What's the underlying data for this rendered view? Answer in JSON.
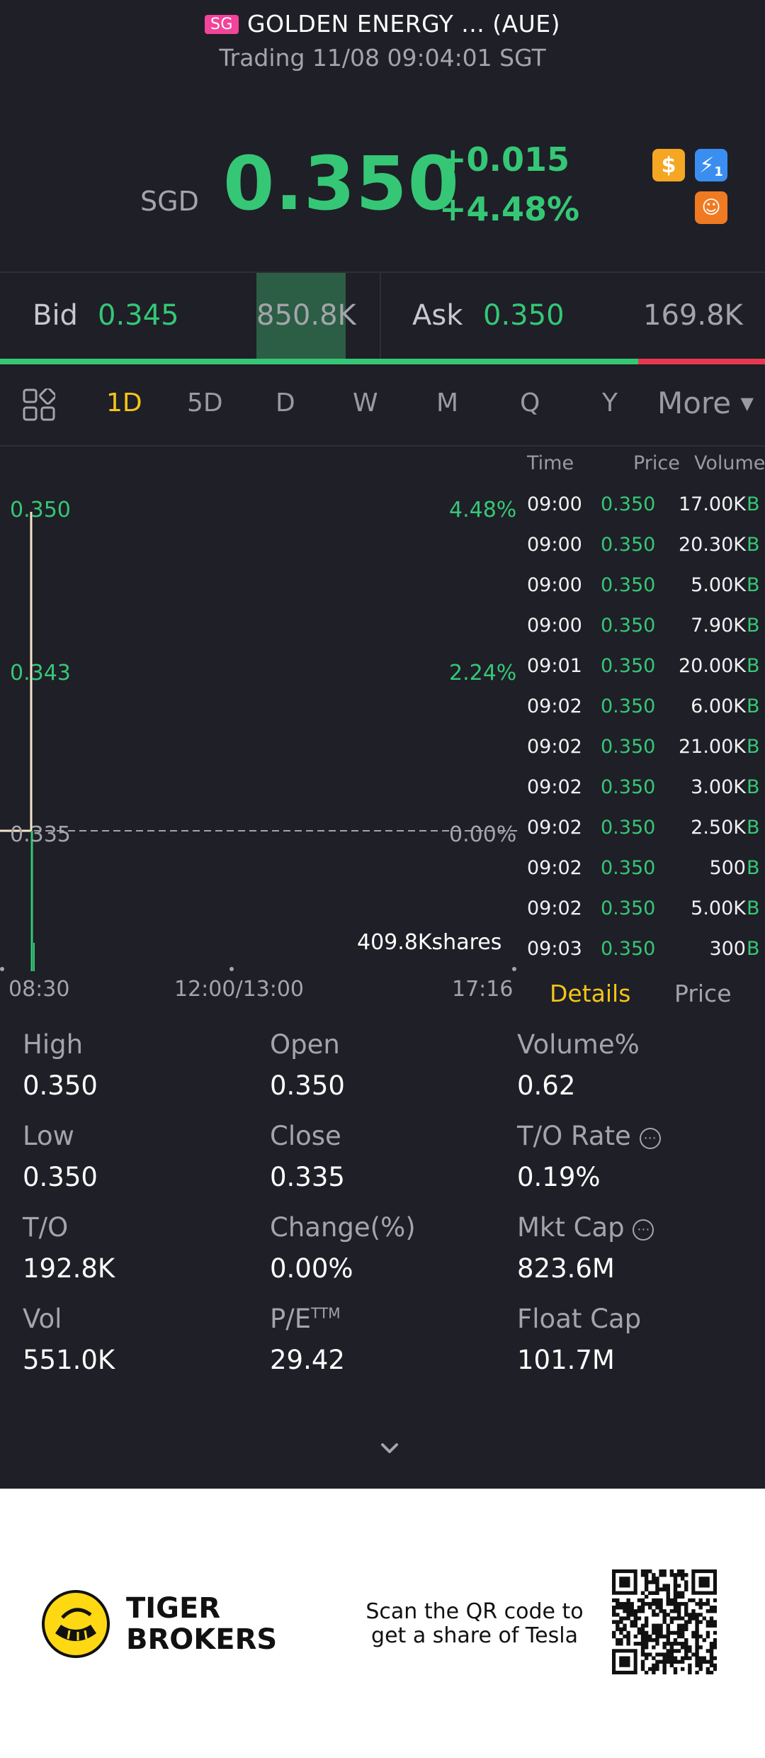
{
  "header": {
    "badge": "SG",
    "title": "GOLDEN ENERGY ... (AUE)",
    "subtitle": "Trading 11/08 09:04:01 SGT"
  },
  "quote": {
    "currency": "SGD",
    "price": "0.350",
    "change": "+0.015",
    "change_pct": "+4.48%",
    "icons": [
      "dollar-icon",
      "lightning-icon",
      "orange-badge-icon"
    ],
    "lightning_sub": "1"
  },
  "book": {
    "bid_label": "Bid",
    "bid_price": "0.345",
    "bid_volume": "850.8K",
    "ask_label": "Ask",
    "ask_price": "0.350",
    "ask_volume": "169.8K",
    "bid_ratio": 0.834
  },
  "tabs": {
    "items": [
      "1D",
      "5D",
      "D",
      "W",
      "M",
      "Q",
      "Y"
    ],
    "active": "1D",
    "more": "More"
  },
  "chart": {
    "price_labels": [
      "0.350",
      "0.343",
      "0.335"
    ],
    "pct_labels": [
      "4.48%",
      "2.24%",
      "0.00%"
    ],
    "volume_label": "409.8Kshares",
    "time_labels": [
      "08:30",
      "12:00/13:00",
      "17:16"
    ]
  },
  "trades": {
    "headers": [
      "Time",
      "Price",
      "Volume"
    ],
    "rows": [
      {
        "time": "09:00",
        "price": "0.350",
        "volume": "17.00K",
        "dir": "B"
      },
      {
        "time": "09:00",
        "price": "0.350",
        "volume": "20.30K",
        "dir": "B"
      },
      {
        "time": "09:00",
        "price": "0.350",
        "volume": "5.00K",
        "dir": "B"
      },
      {
        "time": "09:00",
        "price": "0.350",
        "volume": "7.90K",
        "dir": "B"
      },
      {
        "time": "09:01",
        "price": "0.350",
        "volume": "20.00K",
        "dir": "B"
      },
      {
        "time": "09:02",
        "price": "0.350",
        "volume": "6.00K",
        "dir": "B"
      },
      {
        "time": "09:02",
        "price": "0.350",
        "volume": "21.00K",
        "dir": "B"
      },
      {
        "time": "09:02",
        "price": "0.350",
        "volume": "3.00K",
        "dir": "B"
      },
      {
        "time": "09:02",
        "price": "0.350",
        "volume": "2.50K",
        "dir": "B"
      },
      {
        "time": "09:02",
        "price": "0.350",
        "volume": "500",
        "dir": "B"
      },
      {
        "time": "09:02",
        "price": "0.350",
        "volume": "5.00K",
        "dir": "B"
      },
      {
        "time": "09:03",
        "price": "0.350",
        "volume": "300",
        "dir": "B"
      }
    ],
    "tab_details": "Details",
    "tab_price": "Price"
  },
  "details": {
    "col1": [
      {
        "label": "High",
        "value": "0.350"
      },
      {
        "label": "Low",
        "value": "0.350"
      },
      {
        "label": "T/O",
        "value": "192.8K"
      },
      {
        "label": "Vol",
        "value": "551.0K"
      }
    ],
    "col2": [
      {
        "label": "Open",
        "value": "0.350"
      },
      {
        "label": "Close",
        "value": "0.335"
      },
      {
        "label": "Change(%)",
        "value": "0.00%"
      },
      {
        "label": "P/E",
        "sup": "TTM",
        "value": "29.42"
      }
    ],
    "col3": [
      {
        "label": "Volume%",
        "value": "0.62"
      },
      {
        "label": "T/O Rate",
        "value": "0.19%",
        "info": true
      },
      {
        "label": "Mkt Cap",
        "value": "823.6M",
        "info": true
      },
      {
        "label": "Float Cap",
        "value": "101.7M"
      }
    ]
  },
  "promo": {
    "brand_line1": "TIGER",
    "brand_line2": "BROKERS",
    "text_line1": "Scan the QR code to",
    "text_line2": "get a share of Tesla"
  },
  "colors": {
    "up": "#35c776",
    "down": "#e8384f",
    "active_tab": "#f5c518",
    "background": "#1f1f27"
  }
}
